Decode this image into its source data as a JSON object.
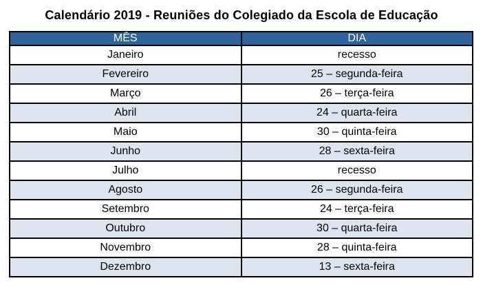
{
  "page": {
    "title": "Calendário 2019 - Reuniões do Colegiado da Escola de Educação"
  },
  "colors": {
    "header_bg": "#2D639E",
    "header_text": "#FFFFFF",
    "row_alt_bg": "#DDE4EE",
    "border": "#000000",
    "text": "#000000"
  },
  "table": {
    "headers": [
      "MÊS",
      "DIA"
    ],
    "rows": [
      {
        "mes": "Janeiro",
        "dia": "recesso"
      },
      {
        "mes": "Fevereiro",
        "dia": "25 – segunda-feira"
      },
      {
        "mes": "Março",
        "dia": "26 – terça-feira"
      },
      {
        "mes": "Abril",
        "dia": "24 – quarta-feira"
      },
      {
        "mes": "Maio",
        "dia": "30 – quinta-feira"
      },
      {
        "mes": "Junho",
        "dia": "28 – sexta-feira"
      },
      {
        "mes": "Julho",
        "dia": "recesso"
      },
      {
        "mes": "Agosto",
        "dia": "26 – segunda-feira"
      },
      {
        "mes": "Setembro",
        "dia": "24 – terça-feira"
      },
      {
        "mes": "Outubro",
        "dia": "30 – quarta-feira"
      },
      {
        "mes": "Novembro",
        "dia": "28 – quinta-feira"
      },
      {
        "mes": "Dezembro",
        "dia": "13 – sexta-feira"
      }
    ]
  }
}
